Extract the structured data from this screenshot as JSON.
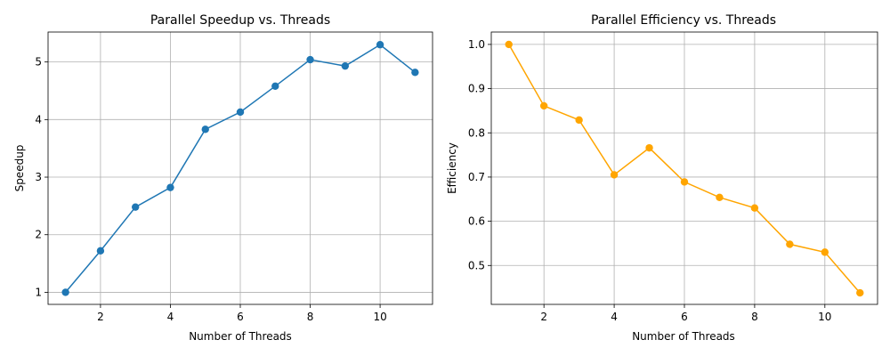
{
  "chart_data": [
    {
      "type": "line",
      "title": "Parallel Speedup vs. Threads",
      "xlabel": "Number of Threads",
      "ylabel": "Speedup",
      "x": [
        1,
        2,
        3,
        4,
        5,
        6,
        7,
        8,
        9,
        10,
        11
      ],
      "series": [
        {
          "values": [
            1.0,
            1.72,
            2.48,
            2.82,
            3.83,
            4.13,
            4.58,
            5.04,
            4.93,
            5.3,
            4.82
          ]
        }
      ],
      "xlim": [
        0.5,
        11.5
      ],
      "ylim": [
        0.79,
        5.52
      ],
      "xticks": [
        2,
        4,
        6,
        8,
        10
      ],
      "yticks": [
        1,
        2,
        3,
        4,
        5
      ],
      "grid": true,
      "marker": "circle",
      "color": "#1f77b4"
    },
    {
      "type": "line",
      "title": "Parallel Efficiency vs. Threads",
      "xlabel": "Number of Threads",
      "ylabel": "Efficiency",
      "x": [
        1,
        2,
        3,
        4,
        5,
        6,
        7,
        8,
        9,
        10,
        11
      ],
      "series": [
        {
          "values": [
            1.0,
            0.861,
            0.829,
            0.705,
            0.766,
            0.689,
            0.654,
            0.63,
            0.548,
            0.53,
            0.438
          ]
        }
      ],
      "xlim": [
        0.5,
        11.5
      ],
      "ylim": [
        0.412,
        1.028
      ],
      "xticks": [
        2,
        4,
        6,
        8,
        10
      ],
      "yticks": [
        0.5,
        0.6,
        0.7,
        0.8,
        0.9,
        1.0
      ],
      "ytick_format": "0.1f",
      "grid": true,
      "marker": "circle",
      "color": "#ffa500"
    }
  ]
}
